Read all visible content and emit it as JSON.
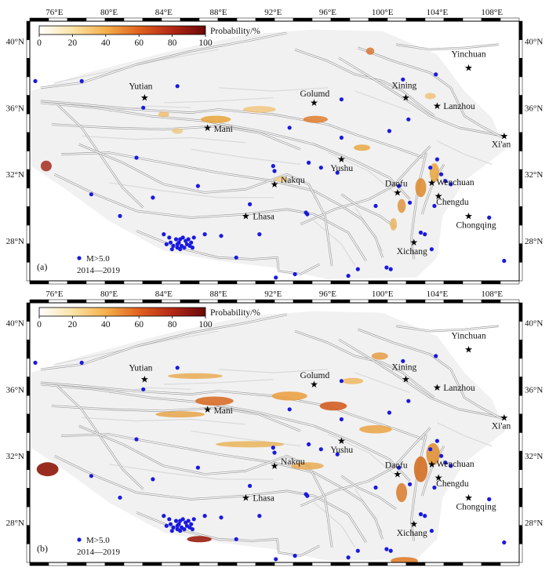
{
  "panels": [
    {
      "tag": "(a)",
      "legend": {
        "marker_label": "M>5.0",
        "years": "2014—2019"
      },
      "colorbar": {
        "title": "Probability/%",
        "ticks": [
          "0",
          "20",
          "40",
          "60",
          "80",
          "100"
        ]
      }
    },
    {
      "tag": "(b)",
      "legend": {
        "marker_label": "M>5.0",
        "years": "2014—2019"
      },
      "colorbar": {
        "title": "Probability/%",
        "ticks": [
          "0",
          "20",
          "40",
          "60",
          "80",
          "100"
        ]
      }
    }
  ],
  "axes": {
    "lon_labels": [
      "76°E",
      "80°E",
      "84°E",
      "88°E",
      "92°E",
      "96°E",
      "100°E",
      "104°E",
      "108°E"
    ],
    "lat_labels": [
      "40°N",
      "36°N",
      "32°N",
      "28°N"
    ]
  },
  "cities": [
    {
      "name": "Yutian"
    },
    {
      "name": "Golumd"
    },
    {
      "name": "Xining"
    },
    {
      "name": "Yinchuan"
    },
    {
      "name": "Lanzhou"
    },
    {
      "name": "Xi'an"
    },
    {
      "name": "Mani"
    },
    {
      "name": "Yushu"
    },
    {
      "name": "Nakqu"
    },
    {
      "name": "Daofu"
    },
    {
      "name": "Wenchuan"
    },
    {
      "name": "Chengdu"
    },
    {
      "name": "Lhasa"
    },
    {
      "name": "Chongqing"
    },
    {
      "name": "Xichang"
    }
  ],
  "colors": {
    "quake_dot": "#1a1adf",
    "fault_line": "#b8b8b8",
    "prob_low": "#f7d08a",
    "prob_high": "#7a0a0a"
  }
}
